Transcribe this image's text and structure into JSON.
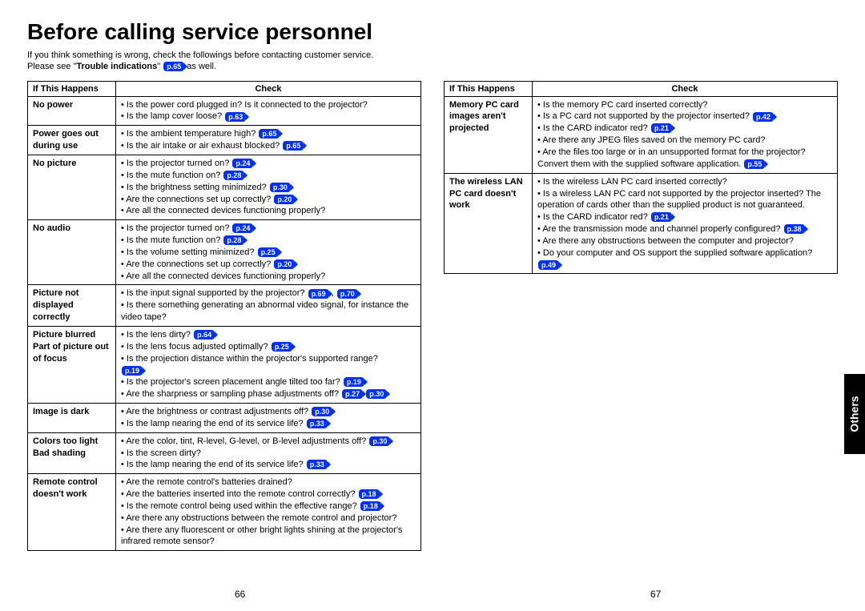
{
  "colors": {
    "ref_bg": "#0030ff",
    "ref_fg": "#ffffff",
    "border": "#000000"
  },
  "title": "Before calling service personnel",
  "intro_line1": "If you think something is wrong, check the followings before contacting customer service.",
  "intro_line2a": "Please see \"",
  "intro_bold": "Trouble indications",
  "intro_line2b": "\" ",
  "intro_ref": "p.65",
  "intro_line2c": "  as well.",
  "header_if": "If  This Happens",
  "header_check": "Check",
  "left_rows": [
    {
      "label": "No power",
      "items": [
        {
          "text": "Is the power cord plugged in? Is it connected to the projector?",
          "refs": []
        },
        {
          "text": "Is the lamp cover loose?",
          "refs": [
            "p.63"
          ]
        }
      ]
    },
    {
      "label": "Power goes out during use",
      "items": [
        {
          "text": "Is the ambient temperature high?",
          "refs": [
            "p.65"
          ]
        },
        {
          "text": "Is the air intake or air exhaust blocked?",
          "refs": [
            "p.65"
          ]
        }
      ]
    },
    {
      "label": "No picture",
      "items": [
        {
          "text": "Is the projector turned on?",
          "refs": [
            "p.24"
          ]
        },
        {
          "text": "Is the mute function on?",
          "refs": [
            "p.28"
          ]
        },
        {
          "text": "Is the brightness setting minimized?",
          "refs": [
            "p.30"
          ]
        },
        {
          "text": "Are the connections set up correctly?",
          "refs": [
            "p.20"
          ]
        },
        {
          "text": "Are all the connected devices functioning properly?",
          "refs": []
        }
      ]
    },
    {
      "label": "No audio",
      "items": [
        {
          "text": "Is the projector turned on?",
          "refs": [
            "p.24"
          ]
        },
        {
          "text": "Is the mute function on?",
          "refs": [
            "p.28"
          ]
        },
        {
          "text": "Is the volume setting minimized?",
          "refs": [
            "p.25"
          ]
        },
        {
          "text": "Are the connections set up correctly?",
          "refs": [
            "p.20"
          ]
        },
        {
          "text": "Are all the connected devices functioning properly?",
          "refs": []
        }
      ]
    },
    {
      "label": "Picture not displayed correctly",
      "items": [
        {
          "text": "Is the input signal supported by the projector?",
          "refs": [
            "p.69",
            "p.70"
          ],
          "sep": " , "
        },
        {
          "text": "Is there something generating an abnormal video signal, for instance the video tape?",
          "refs": []
        }
      ]
    },
    {
      "label": "Picture blurred Part of picture out of focus",
      "items": [
        {
          "text": "Is the lens dirty?",
          "refs": [
            "p.64"
          ]
        },
        {
          "text": "Is the lens focus adjusted optimally?",
          "refs": [
            "p.25"
          ]
        },
        {
          "text": "Is the projection distance within the projector's supported range?",
          "refs": [
            "p.19"
          ],
          "ref_on_new_line": true
        },
        {
          "text": "Is the projector's screen placement angle tilted too far?",
          "refs": [
            "p.19"
          ]
        },
        {
          "text": "Are the sharpness or sampling phase adjustments off?",
          "refs": [
            "p.27",
            "p.30"
          ]
        }
      ]
    },
    {
      "label": "Image is dark",
      "items": [
        {
          "text": "Are the brightness or contrast adjustments off?",
          "refs": [
            "p.30"
          ]
        },
        {
          "text": "Is the lamp nearing the end of its service life?",
          "refs": [
            "p.33"
          ]
        }
      ]
    },
    {
      "label": "Colors too light Bad shading",
      "items": [
        {
          "text": "Are the color, tint, R-level, G-level, or B-level adjustments off?",
          "refs": [
            "p.30"
          ]
        },
        {
          "text": "Is the screen dirty?",
          "refs": []
        },
        {
          "text": "Is the lamp nearing the end of its service life?",
          "refs": [
            "p.33"
          ]
        }
      ]
    },
    {
      "label": "Remote control doesn't work",
      "items": [
        {
          "text": "Are the remote control's batteries drained?",
          "refs": []
        },
        {
          "text": "Are the batteries inserted into the remote control correctly?",
          "refs": [
            "p.18"
          ]
        },
        {
          "text": "Is the remote control being used within the effective range?",
          "refs": [
            "p.18"
          ]
        },
        {
          "text": "Are there any obstructions between the remote control and projector?",
          "refs": []
        },
        {
          "text": "Are there any fluorescent or other bright lights shining at the projector's infrared remote sensor?",
          "refs": []
        }
      ]
    }
  ],
  "right_rows": [
    {
      "label": "Memory PC card images aren't projected",
      "items": [
        {
          "text": "Is the memory PC card inserted correctly?",
          "refs": []
        },
        {
          "text": "Is a PC card not supported by the projector inserted?",
          "refs": [
            "p.42"
          ]
        },
        {
          "text": "Is the CARD indicator red?",
          "refs": [
            "p.21"
          ]
        },
        {
          "text": "Are there any JPEG files saved on the memory PC card?",
          "refs": []
        },
        {
          "text": "Are the files too large or in an unsupported format for the projector? Convert them with the supplied software application.",
          "refs": [
            "p.55"
          ]
        }
      ]
    },
    {
      "label": "The wireless LAN PC card doesn't work",
      "items": [
        {
          "text": "Is the wireless LAN PC card inserted correctly?",
          "refs": []
        },
        {
          "text": "Is a wireless LAN PC card not supported by the projector inserted? The operation of cards other than the supplied product is not guaranteed.",
          "refs": []
        },
        {
          "text": "Is the CARD indicator red?",
          "refs": [
            "p.21"
          ]
        },
        {
          "text": "Are the transmission mode and channel properly configured?",
          "refs": [
            "p.38"
          ]
        },
        {
          "text": "Are there any obstructions between the computer and projector?",
          "refs": []
        },
        {
          "text": "Do your computer and OS support the supplied software application?",
          "refs": [
            "p.49"
          ]
        }
      ]
    }
  ],
  "side_tab": "Others",
  "page_left": "66",
  "page_right": "67"
}
